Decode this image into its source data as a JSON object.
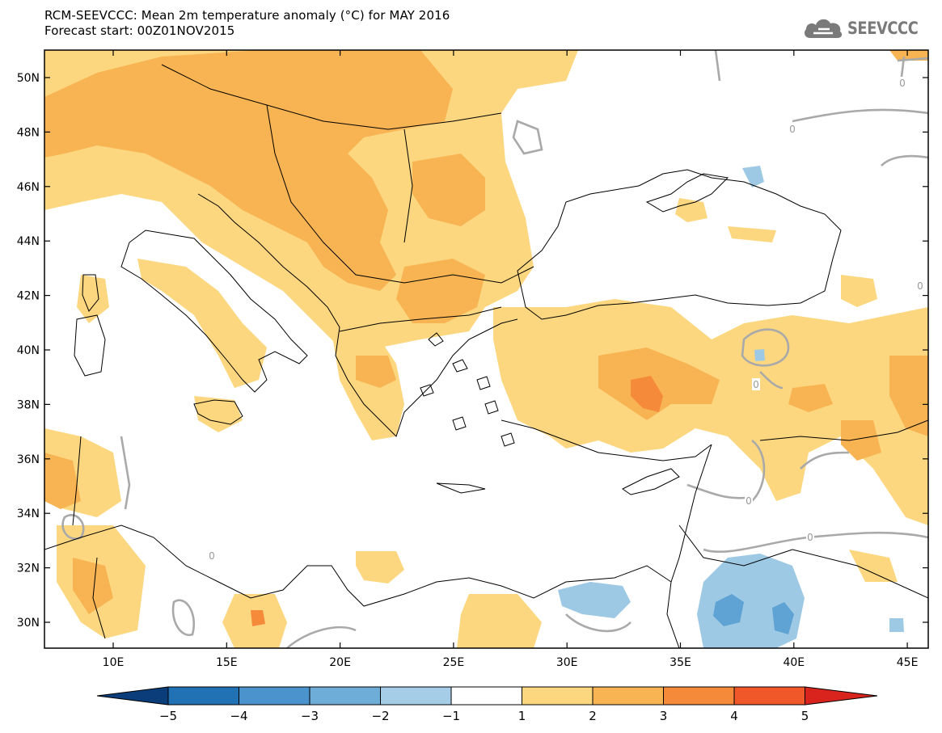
{
  "header": {
    "title_line1": "RCM-SEEVCCC: Mean 2m temperature anomaly (°C) for MAY 2016",
    "title_line2": "Forecast start: 00Z01NOV2015"
  },
  "logo": {
    "text": "SEEVCCC",
    "icon": "cloud-icon"
  },
  "map": {
    "lat_labels": [
      "50N",
      "48N",
      "46N",
      "44N",
      "42N",
      "40N",
      "38N",
      "36N",
      "34N",
      "32N",
      "30N"
    ],
    "lon_labels": [
      "10E",
      "15E",
      "20E",
      "25E",
      "30E",
      "35E",
      "40E",
      "45E"
    ],
    "contour_label": "0",
    "colors": {
      "cat_1_2": "#fcd77f",
      "cat_2_3": "#f8b452",
      "cat_3_4": "#f58a3a",
      "cat_neg_1_2": "#9dc9e5",
      "cat_neg_2_3": "#5fa2d4",
      "zero_contour": "#a9a9a9",
      "borders": "#000000"
    }
  },
  "colorbar": {
    "labels": [
      "−5",
      "−4",
      "−3",
      "−2",
      "−1",
      "1",
      "2",
      "3",
      "4",
      "5"
    ],
    "colors": [
      "#0b3d7a",
      "#2171b5",
      "#4a93cc",
      "#6fadd9",
      "#a6cde8",
      "#ffffff",
      "#fcd77f",
      "#f8b452",
      "#f58a3a",
      "#f0582a",
      "#d9241e"
    ]
  }
}
